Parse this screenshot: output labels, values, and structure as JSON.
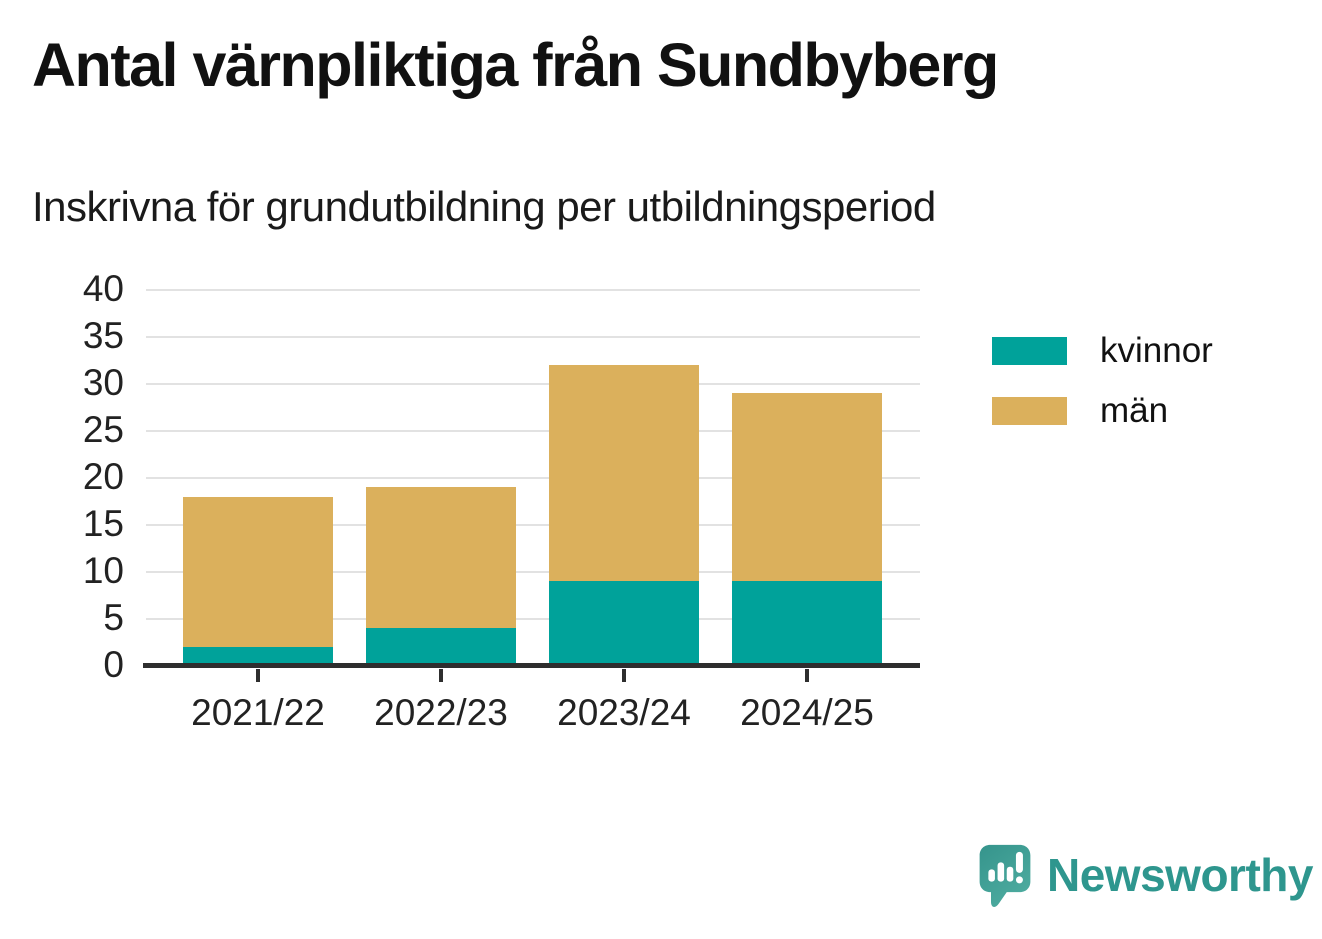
{
  "header": {
    "title": "Antal värnpliktiga från Sundbyberg",
    "subtitle": "Inskrivna för grundutbildning per utbildningsperiod"
  },
  "colors": {
    "background": "#ffffff",
    "title_text": "#111111",
    "axis_text": "#222222",
    "axis_line": "#2e2e2e",
    "gridline": "#e2e2e2",
    "series_kvinnor": "#00a29a",
    "series_man": "#dbb05c",
    "brand_teal": "#2e968e"
  },
  "chart_data": {
    "type": "bar",
    "stacked": true,
    "title": "Antal värnpliktiga från Sundbyberg",
    "subtitle": "Inskrivna för grundutbildning per utbildningsperiod",
    "categories": [
      "2021/22",
      "2022/23",
      "2023/24",
      "2024/25"
    ],
    "series": [
      {
        "name": "kvinnor",
        "color": "#00a29a",
        "values": [
          2,
          4,
          9,
          9
        ]
      },
      {
        "name": "män",
        "color": "#dbb05c",
        "values": [
          16,
          15,
          23,
          20
        ]
      }
    ],
    "stack_totals": [
      18,
      19,
      32,
      29
    ],
    "xlabel": "",
    "ylabel": "",
    "ylim": [
      0,
      40
    ],
    "yticks": [
      0,
      5,
      10,
      15,
      20,
      25,
      30,
      35,
      40
    ],
    "grid": true,
    "legend_position": "right"
  },
  "branding": {
    "name": "Newsworthy",
    "logo_icon": "speech-bubble-bar-chart-exclamation-icon"
  }
}
